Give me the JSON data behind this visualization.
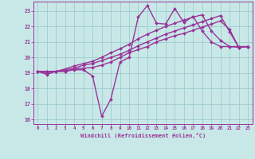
{
  "xlabel": "Windchill (Refroidissement éolien,°C)",
  "xlim": [
    -0.5,
    23.5
  ],
  "ylim": [
    15.7,
    23.6
  ],
  "yticks": [
    16,
    17,
    18,
    19,
    20,
    21,
    22,
    23
  ],
  "xticks": [
    0,
    1,
    2,
    3,
    4,
    5,
    6,
    7,
    8,
    9,
    10,
    11,
    12,
    13,
    14,
    15,
    16,
    17,
    18,
    19,
    20,
    21,
    22,
    23
  ],
  "bg_color": "#c8e8e8",
  "grid_color": "#a0cccc",
  "line_color": "#993399",
  "line_width": 1.0,
  "marker": "D",
  "marker_size": 2.0,
  "lines": [
    [
      19.1,
      18.9,
      19.1,
      19.1,
      19.2,
      19.2,
      18.8,
      16.2,
      17.3,
      19.7,
      20.0,
      22.6,
      23.35,
      22.2,
      22.15,
      23.15,
      22.25,
      22.65,
      21.7,
      21.0,
      20.7,
      20.7,
      20.7,
      20.7
    ],
    [
      19.1,
      19.1,
      19.1,
      19.1,
      19.25,
      19.3,
      19.35,
      19.5,
      19.7,
      20.0,
      20.3,
      20.5,
      20.7,
      21.0,
      21.2,
      21.4,
      21.55,
      21.75,
      21.95,
      22.15,
      22.35,
      21.8,
      20.65,
      20.7
    ],
    [
      19.1,
      19.1,
      19.1,
      19.2,
      19.3,
      19.5,
      19.6,
      19.8,
      20.0,
      20.2,
      20.45,
      20.75,
      21.0,
      21.25,
      21.5,
      21.7,
      21.9,
      22.1,
      22.3,
      22.5,
      22.7,
      21.65,
      20.65,
      20.7
    ],
    [
      19.1,
      19.0,
      19.1,
      19.25,
      19.45,
      19.6,
      19.75,
      20.0,
      20.3,
      20.55,
      20.85,
      21.2,
      21.5,
      21.75,
      22.0,
      22.2,
      22.4,
      22.6,
      22.75,
      21.7,
      21.1,
      20.7,
      20.65,
      20.7
    ]
  ]
}
